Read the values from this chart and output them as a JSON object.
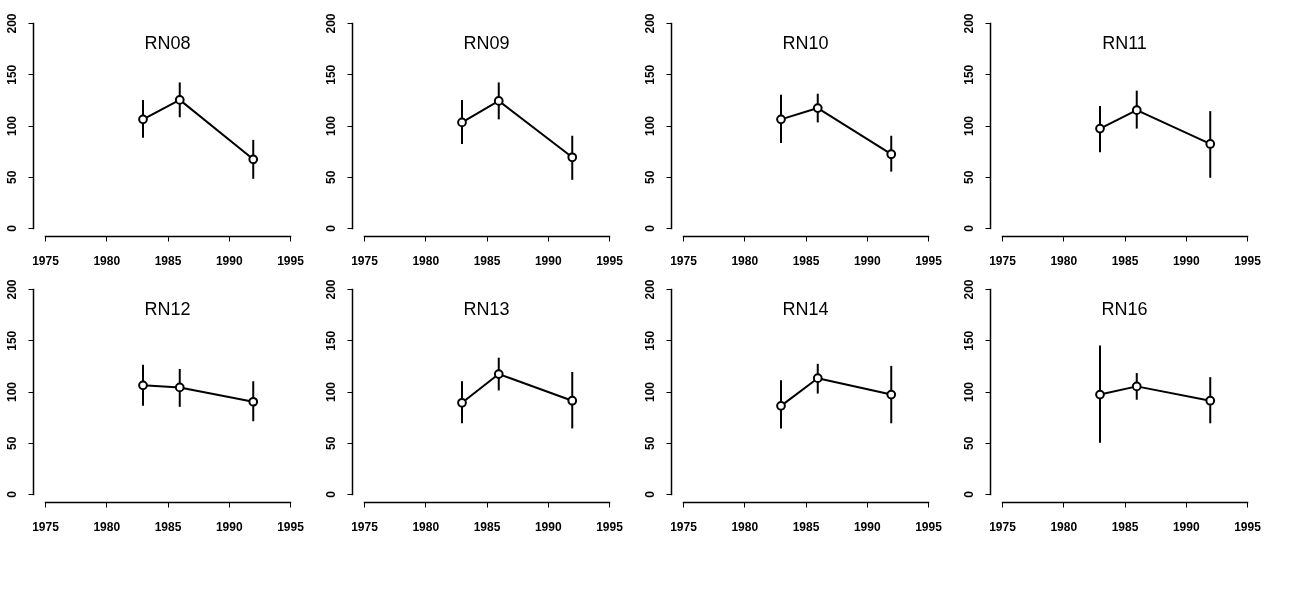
{
  "chart_data": [
    {
      "type": "line",
      "title": "RN08",
      "x": [
        1983,
        1986,
        1992
      ],
      "series": [
        {
          "color": "#000000",
          "values": [
            106,
            125,
            67
          ],
          "errors": [
            [
              88,
              125
            ],
            [
              108,
              142
            ],
            [
              48,
              86
            ]
          ]
        }
      ],
      "xlim": [
        1975,
        1995
      ],
      "xticks": [
        1975,
        1980,
        1985,
        1990,
        1995
      ],
      "ylim": [
        0,
        200
      ],
      "yticks": [
        0,
        50,
        100,
        150,
        200
      ],
      "marker": "circle"
    },
    {
      "type": "line",
      "title": "RN09",
      "x": [
        1983,
        1986,
        1992
      ],
      "series": [
        {
          "color": "#000000",
          "values": [
            103,
            124,
            69
          ],
          "errors": [
            [
              82,
              125
            ],
            [
              106,
              142
            ],
            [
              47,
              90
            ]
          ]
        }
      ],
      "xlim": [
        1975,
        1995
      ],
      "xticks": [
        1975,
        1980,
        1985,
        1990,
        1995
      ],
      "ylim": [
        0,
        200
      ],
      "yticks": [
        0,
        50,
        100,
        150,
        200
      ],
      "marker": "circle"
    },
    {
      "type": "line",
      "title": "RN10",
      "x": [
        1983,
        1986,
        1992
      ],
      "series": [
        {
          "color": "#000000",
          "values": [
            106,
            117,
            72
          ],
          "errors": [
            [
              83,
              130
            ],
            [
              103,
              131
            ],
            [
              55,
              90
            ]
          ]
        }
      ],
      "xlim": [
        1975,
        1995
      ],
      "xticks": [
        1975,
        1980,
        1985,
        1990,
        1995
      ],
      "ylim": [
        0,
        200
      ],
      "yticks": [
        0,
        50,
        100,
        150,
        200
      ],
      "marker": "circle"
    },
    {
      "type": "line",
      "title": "RN11",
      "x": [
        1983,
        1986,
        1992
      ],
      "series": [
        {
          "color": "#000000",
          "values": [
            97,
            115,
            82
          ],
          "errors": [
            [
              74,
              119
            ],
            [
              97,
              134
            ],
            [
              49,
              114
            ]
          ]
        }
      ],
      "xlim": [
        1975,
        1995
      ],
      "xticks": [
        1975,
        1980,
        1985,
        1990,
        1995
      ],
      "ylim": [
        0,
        200
      ],
      "yticks": [
        0,
        50,
        100,
        150,
        200
      ],
      "marker": "circle"
    },
    {
      "type": "line",
      "title": "RN12",
      "x": [
        1983,
        1986,
        1992
      ],
      "series": [
        {
          "color": "#000000",
          "values": [
            106,
            104,
            90
          ],
          "errors": [
            [
              86,
              126
            ],
            [
              85,
              122
            ],
            [
              71,
              110
            ]
          ]
        }
      ],
      "xlim": [
        1975,
        1995
      ],
      "xticks": [
        1975,
        1980,
        1985,
        1990,
        1995
      ],
      "ylim": [
        0,
        200
      ],
      "yticks": [
        0,
        50,
        100,
        150,
        200
      ],
      "marker": "circle"
    },
    {
      "type": "line",
      "title": "RN13",
      "x": [
        1983,
        1986,
        1992
      ],
      "series": [
        {
          "color": "#000000",
          "values": [
            89,
            117,
            91
          ],
          "errors": [
            [
              69,
              110
            ],
            [
              101,
              133
            ],
            [
              64,
              119
            ]
          ]
        }
      ],
      "xlim": [
        1975,
        1995
      ],
      "xticks": [
        1975,
        1980,
        1985,
        1990,
        1995
      ],
      "ylim": [
        0,
        200
      ],
      "yticks": [
        0,
        50,
        100,
        150,
        200
      ],
      "marker": "circle"
    },
    {
      "type": "line",
      "title": "RN14",
      "x": [
        1983,
        1986,
        1992
      ],
      "series": [
        {
          "color": "#000000",
          "values": [
            86,
            113,
            97
          ],
          "errors": [
            [
              64,
              111
            ],
            [
              98,
              127
            ],
            [
              69,
              125
            ]
          ]
        }
      ],
      "xlim": [
        1975,
        1995
      ],
      "xticks": [
        1975,
        1980,
        1985,
        1990,
        1995
      ],
      "ylim": [
        0,
        200
      ],
      "yticks": [
        0,
        50,
        100,
        150,
        200
      ],
      "marker": "circle"
    },
    {
      "type": "line",
      "title": "RN16",
      "x": [
        1983,
        1986,
        1992
      ],
      "series": [
        {
          "color": "#000000",
          "values": [
            97,
            105,
            91
          ],
          "errors": [
            [
              50,
              145
            ],
            [
              92,
              118
            ],
            [
              69,
              114
            ]
          ]
        }
      ],
      "xlim": [
        1975,
        1995
      ],
      "xticks": [
        1975,
        1980,
        1985,
        1990,
        1995
      ],
      "ylim": [
        0,
        200
      ],
      "yticks": [
        0,
        50,
        100,
        150,
        200
      ],
      "marker": "circle"
    }
  ]
}
